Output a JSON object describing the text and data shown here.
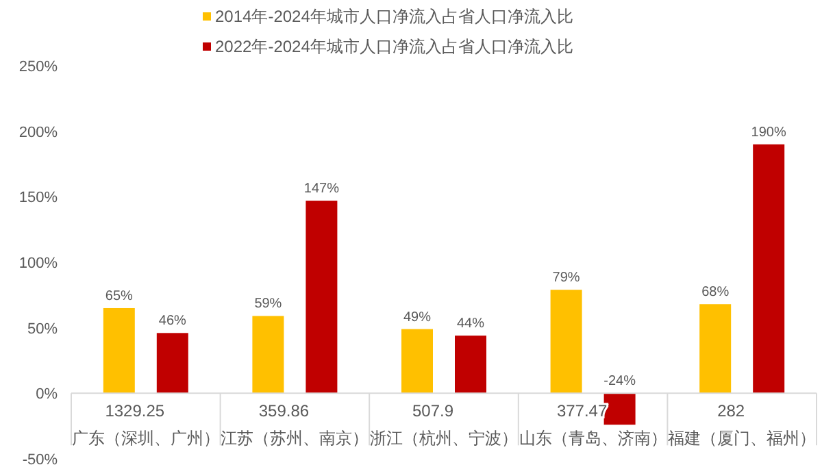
{
  "chart_data": {
    "type": "bar",
    "categories": [
      "广东（深圳、广州）",
      "江苏（苏州、南京）",
      "浙江（杭州、宁波）",
      "山东（青岛、济南）",
      "福建（厦门、福州）"
    ],
    "series": [
      {
        "name": "2014年-2024年城市人口净流入占省人口净流入比",
        "color": "#ffc000",
        "values": [
          65,
          59,
          49,
          79,
          68
        ]
      },
      {
        "name": "2022年-2024年城市人口净流入占省人口净流入比",
        "color": "#c00000",
        "values": [
          46,
          147,
          44,
          -24,
          190
        ]
      }
    ],
    "ylim": [
      -50,
      250
    ],
    "yticks": [
      {
        "value": -50,
        "label": "-50%"
      },
      {
        "value": 0,
        "label": "0%"
      },
      {
        "value": 50,
        "label": "50%"
      },
      {
        "value": 100,
        "label": "100%"
      },
      {
        "value": 150,
        "label": "150%"
      },
      {
        "value": 200,
        "label": "200%"
      },
      {
        "value": 250,
        "label": "250%"
      }
    ],
    "value_labels": [
      [
        "65%",
        "59%",
        "49%",
        "79%",
        "68%"
      ],
      [
        "46%",
        "147%",
        "44%",
        "-24%",
        "190%"
      ]
    ],
    "annotations": [
      "1329.25",
      "359.86",
      "507.9",
      "377.47",
      "282"
    ],
    "legend": "top",
    "grid": false
  }
}
